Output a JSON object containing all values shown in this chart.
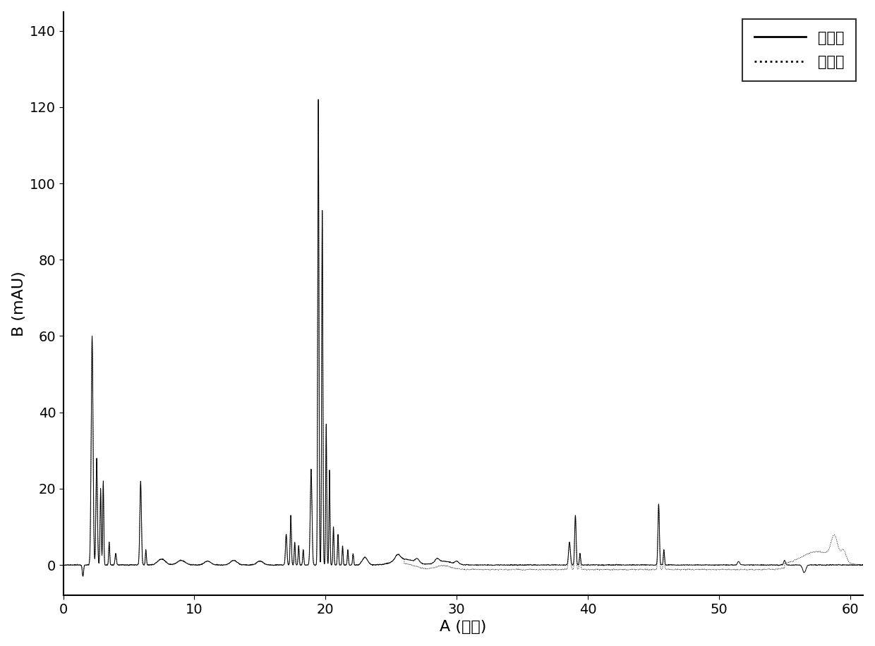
{
  "title": "",
  "xlabel": "A (分钟)",
  "ylabel": "B (mAU)",
  "xlim": [
    0,
    61
  ],
  "ylim": [
    -8,
    145
  ],
  "xticks": [
    0,
    10,
    20,
    30,
    40,
    50,
    60
  ],
  "yticks": [
    0,
    20,
    40,
    60,
    80,
    100,
    120,
    140
  ],
  "legend_before": "处理前",
  "legend_after": "处理后",
  "line_color": "#000000",
  "background_color": "#ffffff",
  "figsize": [
    12.4,
    9.16
  ],
  "dpi": 100
}
